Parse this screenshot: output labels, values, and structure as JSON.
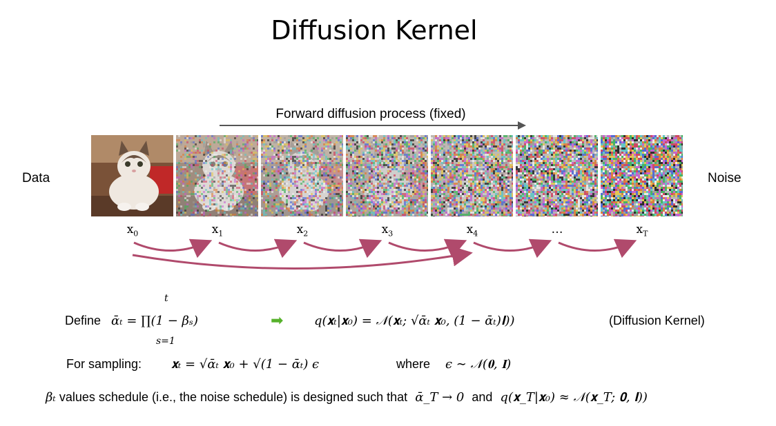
{
  "title": "Diffusion Kernel",
  "forward_label": "Forward diffusion process (fixed)",
  "left_label": "Data",
  "right_label": "Noise",
  "frames": [
    {
      "name": "x",
      "sub": "0",
      "noise": 0.0
    },
    {
      "name": "x",
      "sub": "1",
      "noise": 0.35
    },
    {
      "name": "x",
      "sub": "2",
      "noise": 0.5
    },
    {
      "name": "x",
      "sub": "3",
      "noise": 0.62
    },
    {
      "name": "x",
      "sub": "4",
      "noise": 0.75
    },
    {
      "name": "…",
      "sub": "",
      "noise": 0.87
    },
    {
      "name": "x",
      "sub": "T",
      "noise": 1.0
    }
  ],
  "colors": {
    "arrow": "#b04a6c",
    "forward_arrow": "#555555",
    "green_arrow": "#56b12b"
  },
  "eq": {
    "define_label": "Define",
    "define_lhs": "ᾱₜ = ∏",
    "define_upper": "t",
    "define_lower": "s=1",
    "define_rhs": "(1 − βₛ)",
    "arrow": "➡",
    "kernel": "q(𝐱ₜ|𝐱₀) = 𝒩(𝐱ₜ; √ᾱₜ 𝐱₀, (1 − ᾱₜ)𝐈))",
    "kernel_label": "(Diffusion Kernel)",
    "sampling_label": "For sampling:",
    "sampling": "𝐱ₜ = √ᾱₜ 𝐱₀ + √(1 − ᾱₜ) ϵ",
    "where_label": "where",
    "where_expr": "ϵ ∼ 𝒩(𝟎, 𝐈)",
    "schedule_beta": "βₜ",
    "schedule_text": "values schedule (i.e., the noise schedule) is designed such that",
    "schedule_expr1": "ᾱ_T → 0",
    "schedule_and": "and",
    "schedule_expr2": "q(𝐱_T|𝐱₀) ≈ 𝒩(𝐱_T; 𝟎, 𝐈))"
  }
}
